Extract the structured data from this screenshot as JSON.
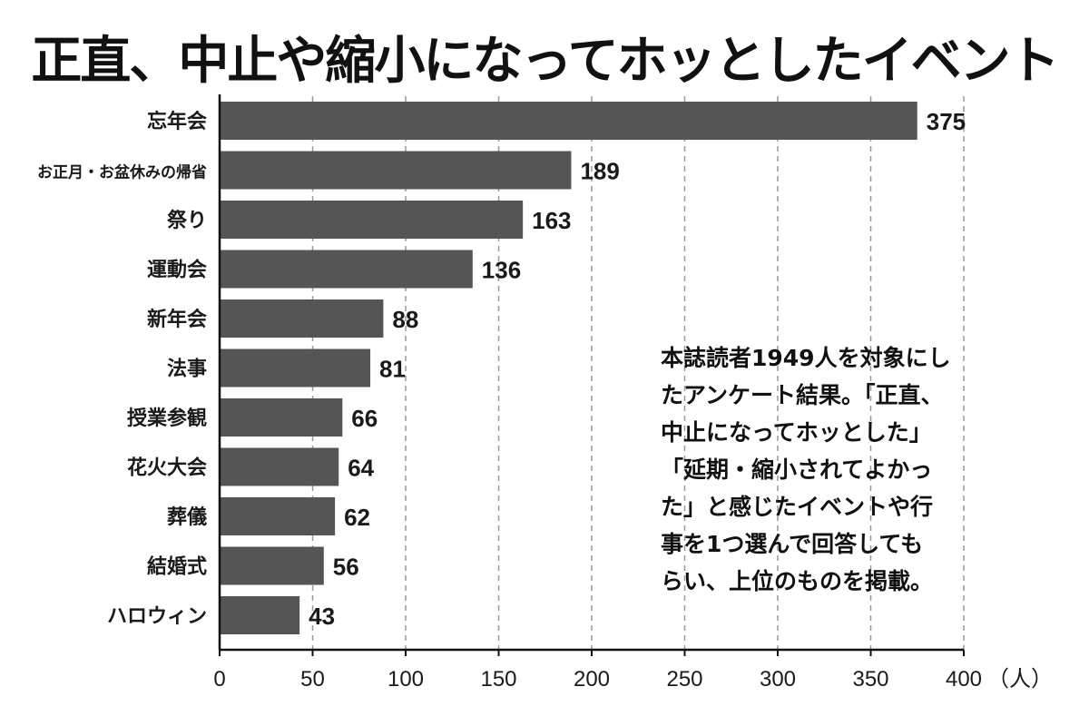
{
  "title": "正直、中止や縮小になってホッとしたイベント",
  "note": "本誌読者1949人を対象にし\nたアンケート結果。「正直、\n中止になってホッとした」\n「延期・縮小されてよかっ\nた」と感じたイベントや行\n事を1つ選んで回答しても\nらい、上位のものを掲載。",
  "colors": {
    "bar": "#555555",
    "grid": "#999999",
    "text": "#1a1a1a"
  },
  "chart_data": {
    "type": "bar",
    "orientation": "horizontal",
    "title": "正直、中止や縮小になってホッとしたイベント",
    "categories": [
      "忘年会",
      "お正月・お盆休みの帰省",
      "祭り",
      "運動会",
      "新年会",
      "法事",
      "授業参観",
      "花火大会",
      "葬儀",
      "結婚式",
      "ハロウィン"
    ],
    "values": [
      375,
      189,
      163,
      136,
      88,
      81,
      66,
      64,
      62,
      56,
      43
    ],
    "xlabel": "",
    "ylabel": "",
    "unit": "（人）",
    "xlim": [
      0,
      400
    ],
    "xticks": [
      "0",
      "50",
      "100",
      "150",
      "200",
      "250",
      "300",
      "350",
      "400"
    ],
    "grid": true,
    "data_labels": true
  }
}
